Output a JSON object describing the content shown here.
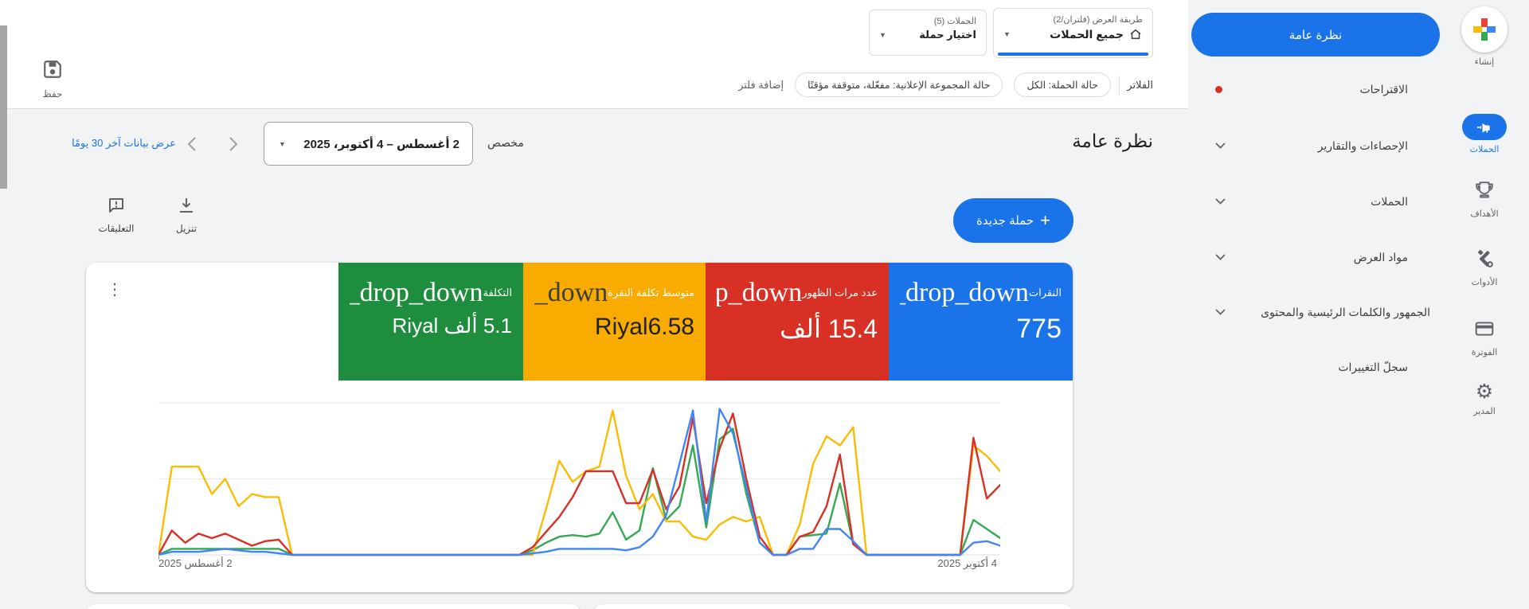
{
  "page": {
    "background": "#f1f3f4",
    "accent": "#1a73e8"
  },
  "header": {
    "save_label": "حفظ",
    "view_dropdown": {
      "label": "طريقة العرض (فلتران/2)",
      "value": "جميع الحملات"
    },
    "campaign_dropdown": {
      "label": "الحملات (5)",
      "value": "اختيار حملة"
    },
    "filters": {
      "title": "الفلاتر",
      "chip_campaign_status": "حالة الحملة: الكل",
      "chip_adgroup_status": "حالة المجموعة الإعلانية: مفعّلة، متوقفة مؤقتًا",
      "add_filter": "إضافة فلتر"
    }
  },
  "toolbar": {
    "page_title": "نظرة عامة",
    "range_type": "مخصص",
    "date_range": "2 أغسطس – 4 أكتوبر، 2025",
    "last30_link": "عرض بيانات آخر 30 يومًا",
    "new_campaign": "حملة جديدة",
    "plus": "+",
    "download": "تنزيل",
    "comments": "التعليقات"
  },
  "nav": {
    "overview_pill": "نظرة عامة",
    "items": [
      {
        "label": "الاقتراحات",
        "badge": "red-dot"
      },
      {
        "label": "الإحصاءات والتقارير",
        "chevron": true
      },
      {
        "label": "الحملات",
        "chevron": true
      },
      {
        "label": "مواد العرض",
        "chevron": true
      },
      {
        "label": "الجمهور والكلمات الرئيسية والمحتوى",
        "chevron": true
      },
      {
        "label": "سجلّ التغييرات"
      }
    ]
  },
  "iconbar": {
    "items": [
      {
        "label": "إنشاء"
      },
      {
        "label": "الحملات",
        "active": true
      },
      {
        "label": "الأهداف"
      },
      {
        "label": "الأدوات"
      },
      {
        "label": "الفوترة"
      },
      {
        "label": "المدير"
      }
    ]
  },
  "cards": [
    {
      "label": "النقرات",
      "icon_text": "arrow_drop_down",
      "value": "775",
      "color": "#1a73e8",
      "text_color": "#ffffff"
    },
    {
      "label": "عدد مرات الظهور",
      "icon_text": "arrow_drop_down",
      "value": "15.4 ألف",
      "color": "#d93025",
      "text_color": "#ffffff"
    },
    {
      "label": "متوسط تكلفة النقرة",
      "icon_text": "arrow_drop_down",
      "value": "Riyal6.58",
      "color": "#f9ab00",
      "text_color": "#202124"
    },
    {
      "label": "التكلفة",
      "icon_text": "arrow_drop_down",
      "value": "5.1 ألف Riyal",
      "color": "#1e8e3e",
      "text_color": "#ffffff"
    }
  ],
  "chart_data": {
    "type": "line",
    "x_start_label": "2 أغسطس 2025",
    "x_end_label": "4 أكتوبر 2025",
    "points": 64,
    "grid": "2 horizontal gridlines, y-axis unlabeled",
    "ylim": [
      0,
      100
    ],
    "series": [
      {
        "name": "النقرات",
        "color": "#4285f4",
        "values": [
          0,
          2,
          2,
          2,
          3,
          4,
          3,
          2,
          2,
          1,
          0,
          0,
          0,
          0,
          0,
          0,
          0,
          0,
          0,
          0,
          0,
          0,
          0,
          0,
          0,
          0,
          0,
          0,
          1,
          2,
          4,
          4,
          4,
          4,
          4,
          3,
          5,
          12,
          26,
          60,
          95,
          22,
          96,
          80,
          45,
          8,
          0,
          0,
          4,
          4,
          17,
          17,
          9,
          0,
          0,
          0,
          0,
          0,
          0,
          0,
          0,
          8,
          9,
          6
        ]
      },
      {
        "name": "عدد مرات الظهور",
        "color": "#d93025",
        "values": [
          0,
          16,
          8,
          14,
          11,
          14,
          10,
          6,
          9,
          10,
          0,
          0,
          0,
          0,
          0,
          0,
          0,
          0,
          0,
          0,
          0,
          0,
          0,
          0,
          0,
          0,
          0,
          0,
          5,
          15,
          25,
          38,
          55,
          55,
          55,
          34,
          34,
          56,
          30,
          45,
          90,
          34,
          70,
          93,
          50,
          12,
          0,
          0,
          12,
          15,
          32,
          66,
          7,
          0,
          0,
          0,
          0,
          0,
          0,
          0,
          0,
          77,
          37,
          46
        ]
      },
      {
        "name": "متوسط تكلفة النقرة",
        "color": "#fbbc04",
        "values": [
          0,
          58,
          58,
          58,
          40,
          50,
          32,
          40,
          38,
          38,
          0,
          0,
          0,
          0,
          0,
          0,
          0,
          0,
          0,
          0,
          0,
          0,
          0,
          0,
          0,
          0,
          0,
          0,
          0,
          30,
          62,
          48,
          55,
          58,
          95,
          52,
          30,
          40,
          22,
          22,
          12,
          10,
          20,
          25,
          22,
          25,
          0,
          0,
          20,
          60,
          78,
          72,
          84,
          0,
          0,
          0,
          0,
          0,
          0,
          0,
          0,
          72,
          65,
          55
        ]
      },
      {
        "name": "التكلفة",
        "color": "#34a853",
        "values": [
          0,
          4,
          4,
          4,
          4,
          4,
          4,
          4,
          4,
          4,
          0,
          0,
          0,
          0,
          0,
          0,
          0,
          0,
          0,
          0,
          0,
          0,
          0,
          0,
          0,
          0,
          0,
          0,
          3,
          8,
          12,
          13,
          12,
          14,
          28,
          10,
          16,
          57,
          23,
          32,
          72,
          18,
          76,
          83,
          40,
          8,
          0,
          0,
          12,
          13,
          14,
          47,
          7,
          0,
          0,
          0,
          0,
          0,
          0,
          0,
          0,
          23,
          17,
          11
        ]
      }
    ]
  }
}
